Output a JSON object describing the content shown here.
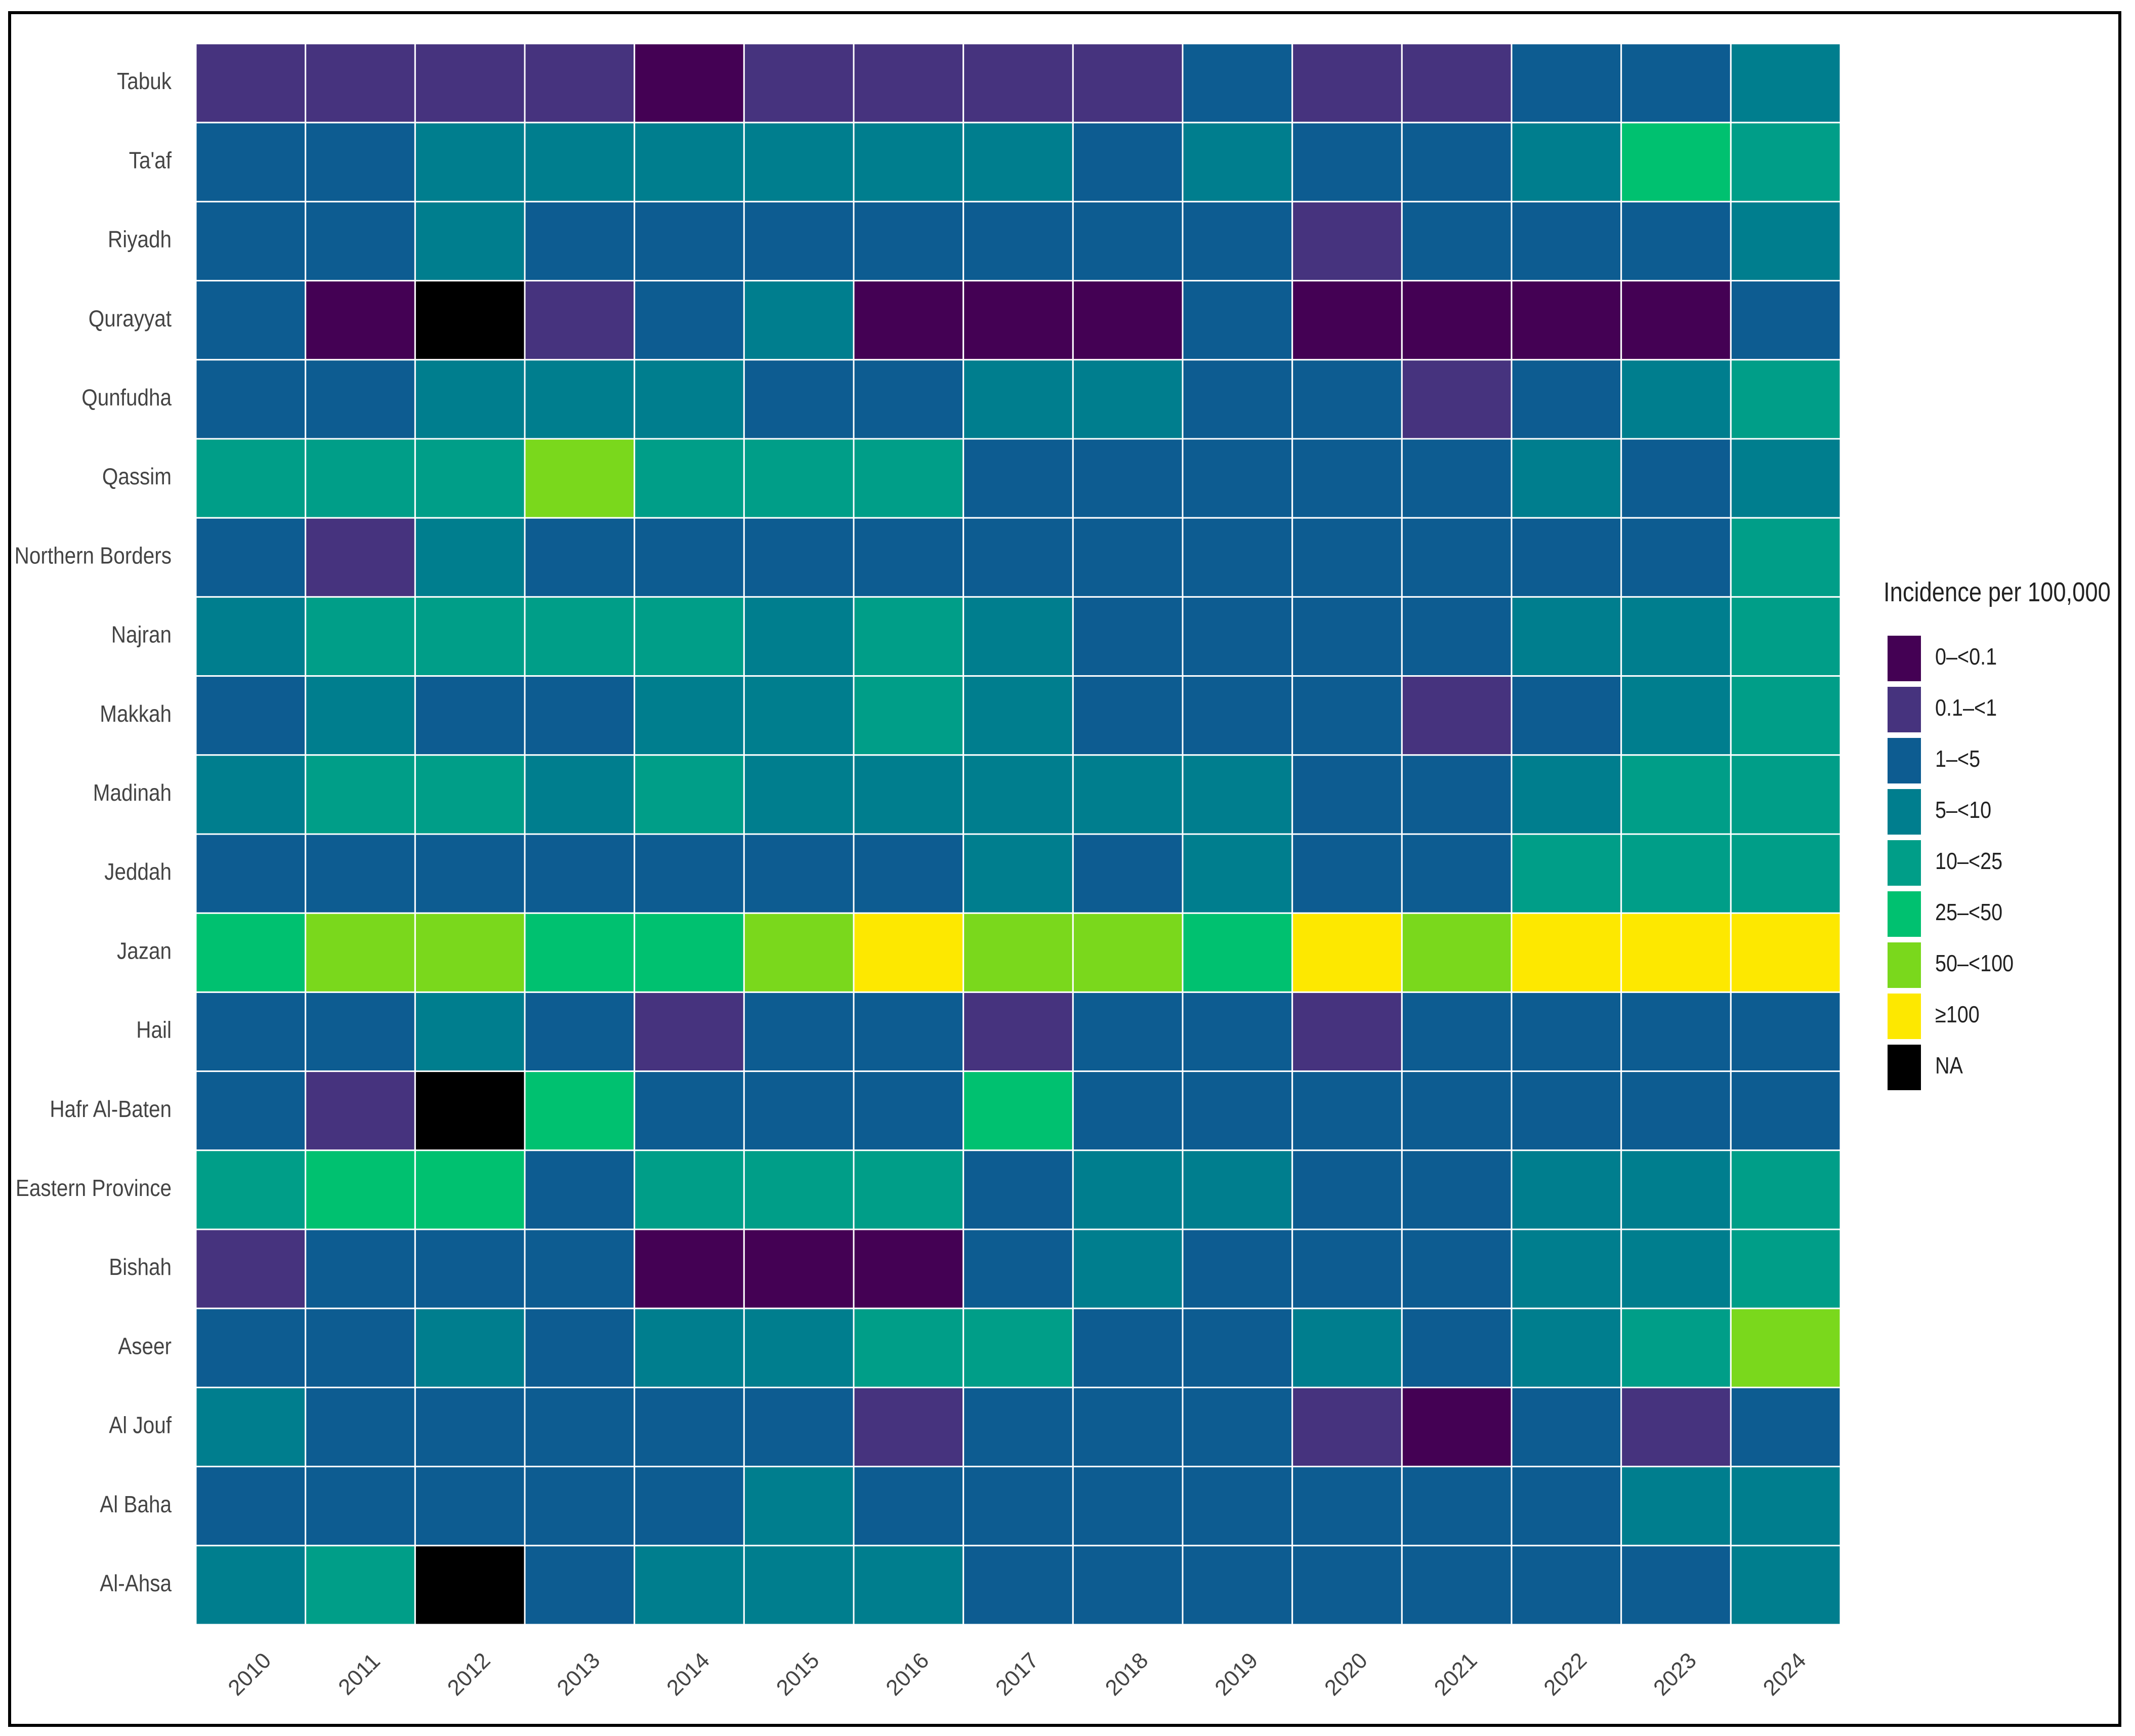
{
  "chart_data": {
    "type": "heatmap",
    "title": "",
    "xlabel": "",
    "ylabel": "",
    "years": [
      "2010",
      "2011",
      "2012",
      "2013",
      "2014",
      "2015",
      "2016",
      "2017",
      "2018",
      "2019",
      "2020",
      "2021",
      "2022",
      "2023",
      "2024"
    ],
    "regions": [
      "Tabuk",
      "Ta'af",
      "Riyadh",
      "Qurayyat",
      "Qunfudha",
      "Qassim",
      "Northern Borders",
      "Najran",
      "Makkah",
      "Madinah",
      "Jeddah",
      "Jazan",
      "Hail",
      "Hafr Al-Baten",
      "Eastern Province",
      "Bishah",
      "Aseer",
      "Al Jouf",
      "Al Baha",
      "Al-Ahsa"
    ],
    "legend": {
      "title": "Incidence per 100,000",
      "position": "right",
      "categories": [
        {
          "label": "0–<0.1",
          "color": "#440154"
        },
        {
          "label": "0.1–<1",
          "color": "#46337E"
        },
        {
          "label": "1–<5",
          "color": "#0D5C91"
        },
        {
          "label": "5–<10",
          "color": "#007E8E"
        },
        {
          "label": "10–<25",
          "color": "#009E88"
        },
        {
          "label": "25–<50",
          "color": "#00C170"
        },
        {
          "label": "50–<100",
          "color": "#7AD81C"
        },
        {
          "label": "≥100",
          "color": "#FDE800"
        },
        {
          "label": "NA",
          "color": "#000000"
        }
      ]
    },
    "cells": [
      [
        "0.1–<1",
        "0.1–<1",
        "0.1–<1",
        "0.1–<1",
        "0–<0.1",
        "0.1–<1",
        "0.1–<1",
        "0.1–<1",
        "0.1–<1",
        "1–<5",
        "0.1–<1",
        "0.1–<1",
        "1–<5",
        "1–<5",
        "5–<10"
      ],
      [
        "1–<5",
        "1–<5",
        "5–<10",
        "5–<10",
        "5–<10",
        "5–<10",
        "5–<10",
        "5–<10",
        "1–<5",
        "5–<10",
        "1–<5",
        "1–<5",
        "5–<10",
        "25–<50",
        "10–<25"
      ],
      [
        "1–<5",
        "1–<5",
        "5–<10",
        "1–<5",
        "1–<5",
        "1–<5",
        "1–<5",
        "1–<5",
        "1–<5",
        "1–<5",
        "0.1–<1",
        "1–<5",
        "1–<5",
        "1–<5",
        "5–<10"
      ],
      [
        "1–<5",
        "0–<0.1",
        "NA",
        "0.1–<1",
        "1–<5",
        "5–<10",
        "0–<0.1",
        "0–<0.1",
        "0–<0.1",
        "1–<5",
        "0–<0.1",
        "0–<0.1",
        "0–<0.1",
        "0–<0.1",
        "1–<5"
      ],
      [
        "1–<5",
        "1–<5",
        "5–<10",
        "5–<10",
        "5–<10",
        "1–<5",
        "1–<5",
        "5–<10",
        "5–<10",
        "1–<5",
        "1–<5",
        "0.1–<1",
        "1–<5",
        "5–<10",
        "10–<25"
      ],
      [
        "10–<25",
        "10–<25",
        "10–<25",
        "50–<100",
        "10–<25",
        "10–<25",
        "10–<25",
        "1–<5",
        "1–<5",
        "1–<5",
        "1–<5",
        "1–<5",
        "5–<10",
        "1–<5",
        "5–<10"
      ],
      [
        "1–<5",
        "0.1–<1",
        "5–<10",
        "1–<5",
        "1–<5",
        "1–<5",
        "1–<5",
        "1–<5",
        "1–<5",
        "1–<5",
        "1–<5",
        "1–<5",
        "1–<5",
        "1–<5",
        "10–<25"
      ],
      [
        "5–<10",
        "10–<25",
        "10–<25",
        "10–<25",
        "10–<25",
        "5–<10",
        "10–<25",
        "5–<10",
        "1–<5",
        "1–<5",
        "1–<5",
        "1–<5",
        "5–<10",
        "5–<10",
        "10–<25"
      ],
      [
        "1–<5",
        "5–<10",
        "1–<5",
        "1–<5",
        "5–<10",
        "5–<10",
        "10–<25",
        "5–<10",
        "1–<5",
        "1–<5",
        "1–<5",
        "0.1–<1",
        "1–<5",
        "5–<10",
        "10–<25"
      ],
      [
        "5–<10",
        "10–<25",
        "10–<25",
        "5–<10",
        "10–<25",
        "5–<10",
        "5–<10",
        "5–<10",
        "5–<10",
        "5–<10",
        "1–<5",
        "1–<5",
        "5–<10",
        "10–<25",
        "10–<25"
      ],
      [
        "1–<5",
        "1–<5",
        "1–<5",
        "1–<5",
        "1–<5",
        "1–<5",
        "1–<5",
        "5–<10",
        "1–<5",
        "5–<10",
        "1–<5",
        "1–<5",
        "10–<25",
        "10–<25",
        "10–<25"
      ],
      [
        "25–<50",
        "50–<100",
        "50–<100",
        "25–<50",
        "25–<50",
        "50–<100",
        "≥100",
        "50–<100",
        "50–<100",
        "25–<50",
        "≥100",
        "50–<100",
        "≥100",
        "≥100",
        "≥100"
      ],
      [
        "1–<5",
        "1–<5",
        "5–<10",
        "1–<5",
        "0.1–<1",
        "1–<5",
        "1–<5",
        "0.1–<1",
        "1–<5",
        "1–<5",
        "0.1–<1",
        "1–<5",
        "1–<5",
        "1–<5",
        "1–<5"
      ],
      [
        "1–<5",
        "0.1–<1",
        "NA",
        "25–<50",
        "1–<5",
        "1–<5",
        "1–<5",
        "25–<50",
        "1–<5",
        "1–<5",
        "1–<5",
        "1–<5",
        "1–<5",
        "1–<5",
        "1–<5"
      ],
      [
        "10–<25",
        "25–<50",
        "25–<50",
        "1–<5",
        "10–<25",
        "10–<25",
        "10–<25",
        "1–<5",
        "5–<10",
        "5–<10",
        "1–<5",
        "1–<5",
        "5–<10",
        "5–<10",
        "10–<25"
      ],
      [
        "0.1–<1",
        "1–<5",
        "1–<5",
        "1–<5",
        "0–<0.1",
        "0–<0.1",
        "0–<0.1",
        "1–<5",
        "5–<10",
        "1–<5",
        "1–<5",
        "1–<5",
        "5–<10",
        "5–<10",
        "10–<25"
      ],
      [
        "1–<5",
        "1–<5",
        "5–<10",
        "1–<5",
        "5–<10",
        "5–<10",
        "10–<25",
        "10–<25",
        "1–<5",
        "1–<5",
        "5–<10",
        "1–<5",
        "5–<10",
        "10–<25",
        "50–<100"
      ],
      [
        "5–<10",
        "1–<5",
        "1–<5",
        "1–<5",
        "1–<5",
        "1–<5",
        "0.1–<1",
        "1–<5",
        "1–<5",
        "1–<5",
        "0.1–<1",
        "0–<0.1",
        "1–<5",
        "0.1–<1",
        "1–<5"
      ],
      [
        "1–<5",
        "1–<5",
        "1–<5",
        "1–<5",
        "1–<5",
        "5–<10",
        "1–<5",
        "1–<5",
        "1–<5",
        "1–<5",
        "1–<5",
        "1–<5",
        "1–<5",
        "5–<10",
        "5–<10"
      ],
      [
        "5–<10",
        "10–<25",
        "NA",
        "1–<5",
        "5–<10",
        "5–<10",
        "5–<10",
        "1–<5",
        "1–<5",
        "1–<5",
        "1–<5",
        "1–<5",
        "1–<5",
        "1–<5",
        "5–<10"
      ]
    ]
  }
}
